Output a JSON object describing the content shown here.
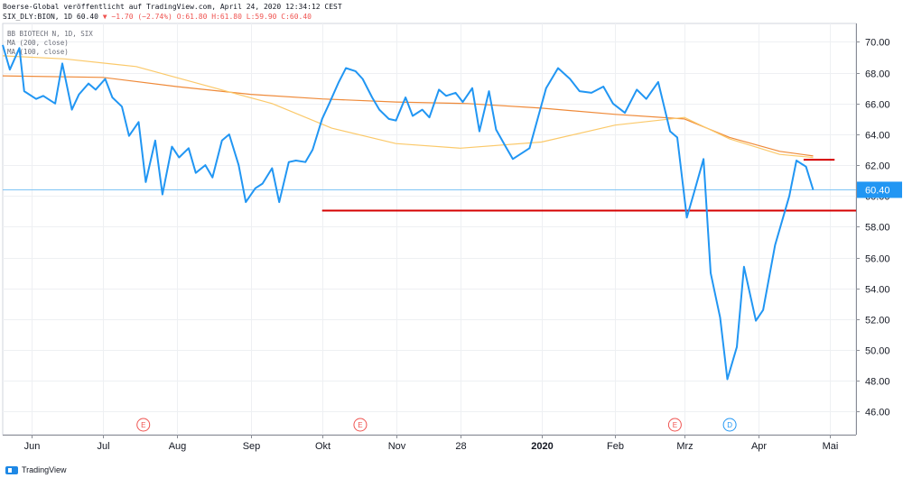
{
  "header": {
    "published": "Boerse-Global veröffentlicht auf TradingView.com, April 24, 2020 12:34:12 CEST",
    "symbol_line": "SIX_DLY:BION, 1D 60.40",
    "change": "▼ −1.70 (−2.74%)",
    "ohlc": "O:61.80 H:61.80 L:59.90 C:60.40"
  },
  "legend": {
    "title": "BB BIOTECH N, 1D, SIX",
    "ma200": "MA (200, close)",
    "ma100": "MA (100, close)"
  },
  "footer": {
    "brand": "TradingView"
  },
  "colors": {
    "price": "#2196f3",
    "ma200": "#ef8a39",
    "ma100": "#fbc96a",
    "support": "#d50000",
    "last_price_badge": "#2196f3",
    "event_marker": "#ef5350",
    "dividend_marker": "#2196f3"
  },
  "chart_data": {
    "type": "line",
    "title": "BB BIOTECH N, 1D, SIX",
    "ylim": [
      44.5,
      71.2
    ],
    "y_ticks": [
      "70.00",
      "68.00",
      "66.00",
      "64.00",
      "62.00",
      "60.00",
      "58.00",
      "56.00",
      "54.00",
      "52.00",
      "50.00",
      "48.00",
      "46.00"
    ],
    "y_tick_values": [
      70,
      68,
      66,
      64,
      62,
      60,
      58,
      56,
      54,
      52,
      50,
      48,
      46
    ],
    "x_range": [
      "2019-05-20",
      "2020-05-12"
    ],
    "x_tick_labels": [
      "Jun",
      "Jul",
      "Aug",
      "Sep",
      "Okt",
      "Nov",
      "28",
      "2020",
      "Feb",
      "Mrz",
      "Apr",
      "Mai"
    ],
    "x_tick_dates": [
      "2019-06-01",
      "2019-07-01",
      "2019-08-01",
      "2019-09-01",
      "2019-10-01",
      "2019-11-01",
      "2019-11-28",
      "2020-01-01",
      "2020-02-01",
      "2020-03-01",
      "2020-04-01",
      "2020-05-01"
    ],
    "last_price": 60.4,
    "last_price_label": "60.40",
    "series": [
      {
        "name": "BB BIOTECH N",
        "x": [
          "2019-05-20",
          "2019-05-23",
          "2019-05-27",
          "2019-05-29",
          "2019-06-03",
          "2019-06-06",
          "2019-06-11",
          "2019-06-14",
          "2019-06-18",
          "2019-06-21",
          "2019-06-25",
          "2019-06-28",
          "2019-07-02",
          "2019-07-05",
          "2019-07-09",
          "2019-07-12",
          "2019-07-16",
          "2019-07-19",
          "2019-07-23",
          "2019-07-26",
          "2019-07-30",
          "2019-08-02",
          "2019-08-06",
          "2019-08-09",
          "2019-08-13",
          "2019-08-16",
          "2019-08-20",
          "2019-08-23",
          "2019-08-27",
          "2019-08-30",
          "2019-09-03",
          "2019-09-06",
          "2019-09-10",
          "2019-09-13",
          "2019-09-17",
          "2019-09-20",
          "2019-09-24",
          "2019-09-27",
          "2019-10-01",
          "2019-10-04",
          "2019-10-08",
          "2019-10-11",
          "2019-10-15",
          "2019-10-18",
          "2019-10-22",
          "2019-10-25",
          "2019-10-29",
          "2019-11-01",
          "2019-11-05",
          "2019-11-08",
          "2019-11-12",
          "2019-11-15",
          "2019-11-19",
          "2019-11-22",
          "2019-11-26",
          "2019-11-29",
          "2019-12-03",
          "2019-12-06",
          "2019-12-10",
          "2019-12-13",
          "2019-12-17",
          "2019-12-20",
          "2019-12-27",
          "2020-01-03",
          "2020-01-08",
          "2020-01-13",
          "2020-01-17",
          "2020-01-22",
          "2020-01-27",
          "2020-01-31",
          "2020-02-05",
          "2020-02-10",
          "2020-02-14",
          "2020-02-19",
          "2020-02-24",
          "2020-02-27",
          "2020-03-02",
          "2020-03-05",
          "2020-03-09",
          "2020-03-12",
          "2020-03-16",
          "2020-03-19",
          "2020-03-23",
          "2020-03-26",
          "2020-03-31",
          "2020-04-03",
          "2020-04-08",
          "2020-04-14",
          "2020-04-17",
          "2020-04-21",
          "2020-04-24"
        ],
        "values": [
          69.8,
          68.2,
          69.6,
          66.8,
          66.3,
          66.5,
          66.0,
          68.6,
          65.6,
          66.6,
          67.3,
          66.9,
          67.6,
          66.4,
          65.8,
          63.9,
          64.8,
          60.9,
          63.6,
          60.1,
          63.2,
          62.5,
          63.1,
          61.5,
          62.0,
          61.2,
          63.6,
          64.0,
          62.0,
          59.6,
          60.5,
          60.8,
          61.8,
          59.6,
          62.2,
          62.3,
          62.2,
          63.0,
          65.0,
          66.0,
          67.4,
          68.3,
          68.1,
          67.6,
          66.4,
          65.6,
          65.0,
          64.9,
          66.4,
          65.2,
          65.6,
          65.1,
          66.9,
          66.5,
          66.7,
          66.1,
          67.0,
          64.2,
          66.8,
          64.3,
          63.2,
          62.4,
          63.1,
          67.0,
          68.3,
          67.6,
          66.8,
          66.7,
          67.1,
          66.0,
          65.4,
          66.9,
          66.3,
          67.4,
          64.2,
          63.8,
          58.6,
          60.2,
          62.4,
          55.0,
          52.1,
          48.1,
          50.2,
          55.4,
          51.9,
          52.6,
          56.8,
          60.0,
          62.3,
          61.9,
          60.4
        ]
      },
      {
        "name": "MA (200, close)",
        "x": [
          "2019-05-20",
          "2019-07-01",
          "2019-08-01",
          "2019-09-01",
          "2019-10-01",
          "2019-11-01",
          "2019-12-01",
          "2020-01-01",
          "2020-02-01",
          "2020-03-01",
          "2020-03-20",
          "2020-04-10",
          "2020-04-24"
        ],
        "values": [
          67.8,
          67.7,
          67.1,
          66.6,
          66.3,
          66.1,
          66.0,
          65.7,
          65.3,
          65.0,
          63.8,
          62.9,
          62.6
        ]
      },
      {
        "name": "MA (100, close)",
        "x": [
          "2019-05-20",
          "2019-06-15",
          "2019-07-15",
          "2019-08-10",
          "2019-09-10",
          "2019-10-05",
          "2019-11-01",
          "2019-11-28",
          "2020-01-01",
          "2020-02-01",
          "2020-03-01",
          "2020-03-20",
          "2020-04-10",
          "2020-04-24"
        ],
        "values": [
          69.1,
          68.9,
          68.4,
          67.3,
          66.0,
          64.4,
          63.4,
          63.1,
          63.5,
          64.6,
          65.1,
          63.7,
          62.7,
          62.5
        ]
      }
    ],
    "support_lines": [
      {
        "from": "2019-10-01",
        "to": "2020-05-12",
        "value": 59.05
      },
      {
        "from": "2020-04-20",
        "to": "2020-05-03",
        "value": 62.35
      }
    ],
    "event_markers": [
      {
        "date": "2019-07-18",
        "label": "E"
      },
      {
        "date": "2019-10-17",
        "label": "E"
      },
      {
        "date": "2020-02-26",
        "label": "E"
      },
      {
        "date": "2020-03-20",
        "label": "D"
      }
    ]
  }
}
